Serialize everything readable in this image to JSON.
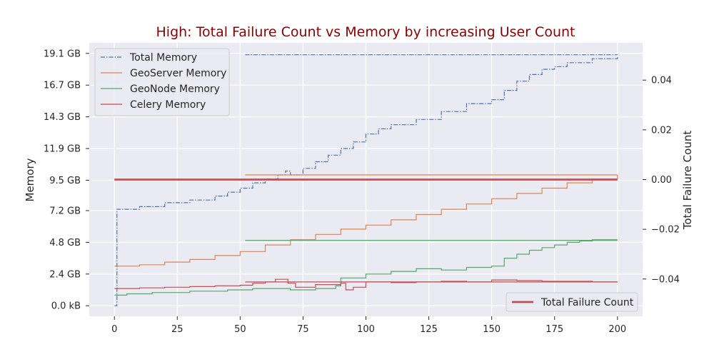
{
  "chart_data": {
    "type": "line",
    "title": "High: Total Failure Count vs Memory by increasing User Count",
    "xlabel": "",
    "ylabel": "Memory",
    "y2label": "Total Failure Count",
    "xlim": [
      -10,
      210
    ],
    "ylim_gb": [
      -0.8,
      19.9
    ],
    "y2lim": [
      -0.055,
      0.055
    ],
    "x_ticks": [
      0,
      25,
      50,
      75,
      100,
      125,
      150,
      175,
      200
    ],
    "y_ticks": [
      {
        "value": 0.0,
        "label": "0.0 kB"
      },
      {
        "value": 2.4,
        "label": "2.4 GB"
      },
      {
        "value": 4.8,
        "label": "4.8 GB"
      },
      {
        "value": 7.2,
        "label": "7.2 GB"
      },
      {
        "value": 9.5,
        "label": "9.5 GB"
      },
      {
        "value": 11.9,
        "label": "11.9 GB"
      },
      {
        "value": 14.3,
        "label": "14.3 GB"
      },
      {
        "value": 16.7,
        "label": "16.7 GB"
      },
      {
        "value": 19.1,
        "label": "19.1 GB"
      }
    ],
    "y2_ticks": [
      {
        "value": -0.04,
        "label": "−0.04"
      },
      {
        "value": -0.02,
        "label": "−0.02"
      },
      {
        "value": 0.0,
        "label": "0.00"
      },
      {
        "value": 0.02,
        "label": "0.02"
      },
      {
        "value": 0.04,
        "label": "0.04"
      }
    ],
    "grid": true,
    "legend_left": "upper-left",
    "legend_right": "lower-right",
    "series": [
      {
        "name": "Total Memory",
        "color": "#4c72b0",
        "dash": "dashdot",
        "step": true,
        "x": [
          0,
          1,
          10,
          20,
          30,
          40,
          45,
          50,
          55,
          60,
          65,
          68,
          70,
          75,
          80,
          85,
          90,
          95,
          100,
          105,
          110,
          120,
          130,
          140,
          150,
          155,
          160,
          165,
          170,
          175,
          180,
          190,
          200
        ],
        "y": [
          0.0,
          7.3,
          7.5,
          7.8,
          8.0,
          8.3,
          8.6,
          8.9,
          9.3,
          9.6,
          9.9,
          10.2,
          9.9,
          10.4,
          10.9,
          11.4,
          11.9,
          12.4,
          13.0,
          13.4,
          13.7,
          14.1,
          14.7,
          15.3,
          15.6,
          16.3,
          17.0,
          17.5,
          17.9,
          18.1,
          18.4,
          18.7,
          18.9
        ]
      },
      {
        "name": "GeoServer Memory",
        "color": "#dd8452",
        "dash": "solid",
        "step": true,
        "x": [
          0,
          10,
          20,
          30,
          40,
          50,
          60,
          70,
          80,
          90,
          100,
          110,
          120,
          130,
          140,
          150,
          160,
          170,
          180,
          190,
          200
        ],
        "y": [
          3.0,
          3.1,
          3.3,
          3.5,
          3.8,
          4.1,
          4.6,
          5.0,
          5.4,
          5.8,
          6.1,
          6.5,
          6.9,
          7.3,
          7.7,
          8.1,
          8.5,
          8.9,
          9.3,
          9.6,
          9.9
        ]
      },
      {
        "name": "GeoNode Memory",
        "color": "#55a868",
        "dash": "solid",
        "step": true,
        "x": [
          0,
          5,
          15,
          30,
          45,
          55,
          65,
          70,
          80,
          88,
          90,
          100,
          110,
          120,
          130,
          140,
          150,
          155,
          160,
          165,
          170,
          175,
          180,
          185,
          190,
          200
        ],
        "y": [
          0.8,
          0.9,
          1.0,
          1.1,
          1.2,
          1.3,
          1.3,
          1.2,
          1.3,
          1.5,
          2.1,
          2.4,
          2.6,
          2.8,
          2.7,
          2.9,
          3.0,
          3.6,
          3.9,
          4.2,
          4.4,
          4.6,
          4.8,
          4.9,
          5.0,
          5.0
        ]
      },
      {
        "name": "Celery Memory",
        "color": "#c44e52",
        "dash": "solid",
        "step": true,
        "x": [
          0,
          10,
          20,
          30,
          40,
          50,
          55,
          60,
          64,
          69,
          72,
          80,
          90,
          92,
          95,
          100,
          110,
          120,
          130,
          140,
          150,
          160,
          170,
          180,
          190,
          200
        ],
        "y": [
          1.3,
          1.35,
          1.4,
          1.45,
          1.5,
          1.55,
          1.7,
          1.8,
          2.0,
          1.7,
          1.4,
          1.6,
          1.7,
          1.2,
          1.4,
          1.8,
          1.75,
          1.8,
          1.85,
          1.8,
          1.95,
          1.9,
          1.85,
          1.85,
          1.8,
          1.8
        ]
      },
      {
        "name": "",
        "color": "#4c72b0",
        "dash": "dashdot",
        "step": false,
        "x": [
          52,
          200
        ],
        "y": [
          19.0,
          19.0
        ]
      },
      {
        "name": "",
        "color": "#dd8452",
        "dash": "solid",
        "step": false,
        "x": [
          52,
          200
        ],
        "y": [
          9.9,
          9.9
        ]
      },
      {
        "name": "",
        "color": "#55a868",
        "dash": "solid",
        "step": false,
        "x": [
          52,
          200
        ],
        "y": [
          4.95,
          4.95
        ]
      },
      {
        "name": "",
        "color": "#c44e52",
        "dash": "solid",
        "step": false,
        "x": [
          52,
          200
        ],
        "y": [
          1.8,
          1.8
        ]
      }
    ],
    "series_right": [
      {
        "name": "Total Failure Count",
        "color": "#c44e52",
        "x": [
          0,
          200
        ],
        "y": [
          0.0,
          0.0
        ]
      }
    ]
  }
}
